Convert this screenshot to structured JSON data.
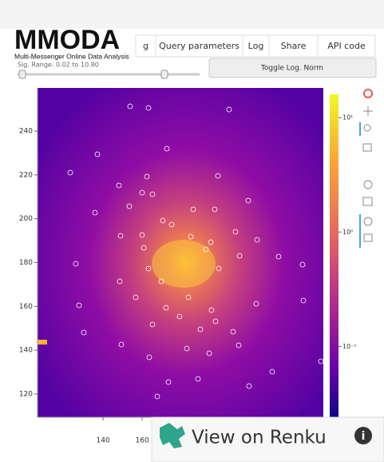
{
  "logo": {
    "title": "MMODA",
    "subtitle": "Multi-Messenger Online Data Analysis"
  },
  "tabs": [
    "g",
    "Query parameters",
    "Log",
    "Share",
    "API code"
  ],
  "slider_label": "Sig. Range: 0.02 to 10.80",
  "button": "Toggle Log. Norm",
  "plot": {
    "xlim": [
      106.5,
      252.6
    ],
    "ylim": [
      109.4,
      259.7
    ],
    "xticks": [
      140,
      160
    ],
    "yticks": [
      120,
      140,
      160,
      180,
      200,
      220,
      240
    ],
    "colorbar_lim": [
      0.024,
      16
    ],
    "colorbar_log": true,
    "colorbar_ticks": [
      {
        "value": 10,
        "label": "10¹"
      },
      {
        "value": 1,
        "label": "10⁰"
      },
      {
        "value": 0.1,
        "label": "10⁻¹"
      }
    ]
  },
  "renku": "View on Renku"
}
